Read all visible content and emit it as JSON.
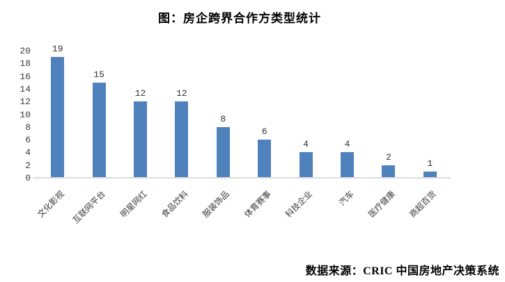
{
  "title": "图：房企跨界合作方类型统计",
  "source": "数据来源：CRIC 中国房地产决策系统",
  "colors": {
    "bar": "#4F81BD",
    "axis_line": "#DCDCDC",
    "title_text": "#000000",
    "tick_text": "#3B3B3B",
    "background": "#FFFFFF"
  },
  "chart_data": {
    "type": "bar",
    "title": "图：房企跨界合作方类型统计",
    "categories": [
      "文化影视",
      "互联网平台",
      "明星网红",
      "食品饮料",
      "服装饰品",
      "体育赛事",
      "科技企业",
      "汽车",
      "医疗健康",
      "商超百货"
    ],
    "values": [
      19,
      15,
      12,
      12,
      8,
      6,
      4,
      4,
      2,
      1
    ],
    "xlabel": "",
    "ylabel": "",
    "ylim": [
      0,
      20
    ],
    "ytick_step": 2,
    "grid": false,
    "legend": false,
    "data_labels": true,
    "source_note": "数据来源：CRIC 中国房地产决策系统"
  }
}
